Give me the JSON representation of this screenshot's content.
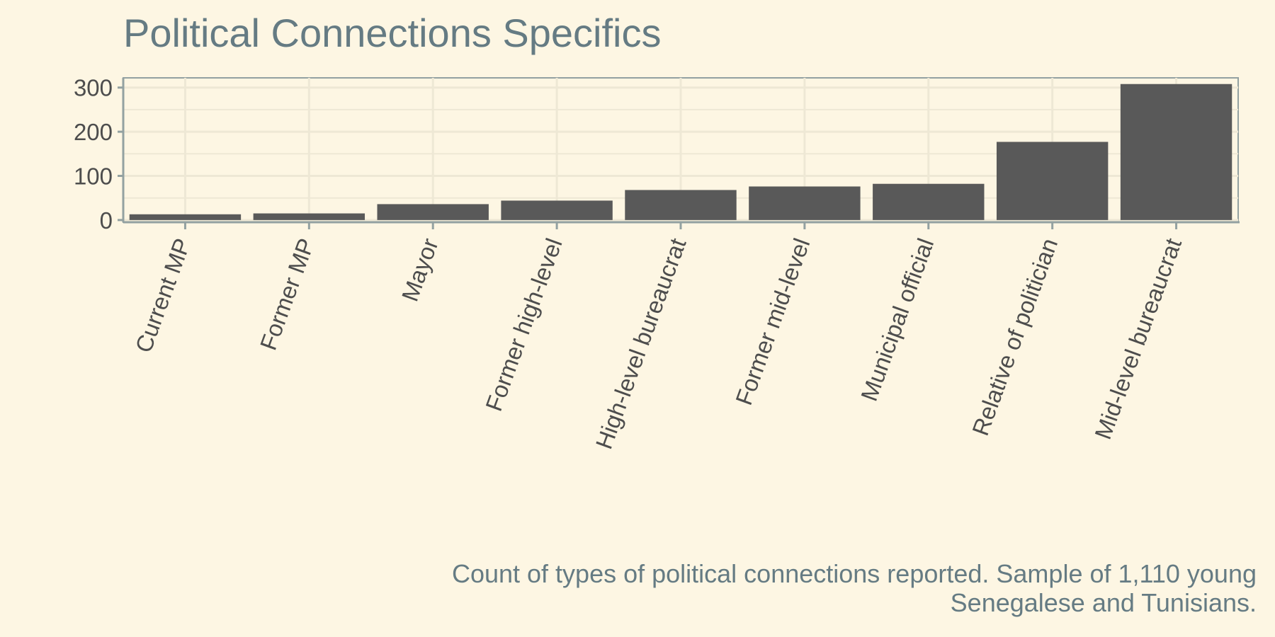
{
  "chart_data": {
    "type": "bar",
    "title": "Political Connections Specifics",
    "subtitle": "",
    "xlabel": "",
    "ylabel": "",
    "caption_lines": [
      "Count of types of political connections reported. Sample of 1,110 young",
      "Senegalese and Tunisians."
    ],
    "categories": [
      "Current MP",
      "Former MP",
      "Mayor",
      "Former high-level",
      "High-level bureaucrat",
      "Former mid-level",
      "Municipal official",
      "Relative of politician",
      "Mid-level bureaucrat"
    ],
    "values": [
      13,
      15,
      36,
      44,
      68,
      76,
      82,
      177,
      308
    ],
    "ylim": [
      -5,
      322
    ],
    "yticks": [
      0,
      100,
      200,
      300
    ],
    "ytick_labels": [
      "0",
      "100",
      "200",
      "300"
    ],
    "grid": true,
    "legend": "none",
    "colors": {
      "background": "#fdf6e3",
      "bar": "#595959",
      "grid": "#eee8d5",
      "axis": "#93a1a1",
      "title": "#657b83",
      "tick_text": "#4d4d4d"
    }
  }
}
